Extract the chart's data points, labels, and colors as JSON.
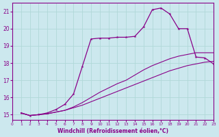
{
  "xlabel": "Windchill (Refroidissement éolien,°C)",
  "bg_color": "#cce8ee",
  "grid_color": "#aaddcc",
  "line_color": "#880088",
  "xlim": [
    0,
    23
  ],
  "ylim": [
    14.7,
    21.5
  ],
  "xticks": [
    0,
    1,
    2,
    3,
    4,
    5,
    6,
    7,
    8,
    9,
    10,
    11,
    12,
    13,
    14,
    15,
    16,
    17,
    18,
    19,
    20,
    21,
    22,
    23
  ],
  "yticks": [
    15,
    16,
    17,
    18,
    19,
    20,
    21
  ],
  "line1_x": [
    1,
    2,
    3,
    4,
    5,
    6,
    7,
    8,
    9,
    10,
    11,
    12,
    13,
    14,
    15,
    16,
    17,
    18,
    19,
    20,
    21,
    22,
    23
  ],
  "line1_y": [
    15.1,
    14.95,
    15.0,
    15.05,
    15.15,
    15.25,
    15.4,
    15.55,
    15.75,
    15.95,
    16.15,
    16.35,
    16.55,
    16.75,
    16.95,
    17.15,
    17.35,
    17.55,
    17.7,
    17.85,
    17.95,
    18.05,
    18.1
  ],
  "line2_x": [
    1,
    2,
    3,
    4,
    5,
    6,
    7,
    8,
    9,
    10,
    11,
    12,
    13,
    14,
    15,
    16,
    17,
    18,
    19,
    20,
    21,
    22,
    23
  ],
  "line2_y": [
    15.1,
    14.95,
    15.0,
    15.05,
    15.15,
    15.25,
    15.45,
    15.7,
    16.0,
    16.3,
    16.55,
    16.8,
    17.0,
    17.3,
    17.6,
    17.85,
    18.05,
    18.25,
    18.4,
    18.5,
    18.6,
    18.6,
    18.6
  ],
  "line3_x": [
    1,
    2,
    3,
    4,
    5,
    6,
    7,
    8,
    9,
    10,
    11,
    12,
    13,
    14,
    15,
    16,
    17,
    18,
    19,
    20,
    21,
    22,
    23
  ],
  "line3_y": [
    15.1,
    14.95,
    15.0,
    15.1,
    15.3,
    15.6,
    16.2,
    17.8,
    19.4,
    19.45,
    19.45,
    19.5,
    19.5,
    19.55,
    20.1,
    21.1,
    21.2,
    20.85,
    20.0,
    20.0,
    18.35,
    18.3,
    17.95
  ],
  "line3_markers_x": [
    1,
    2,
    3,
    4,
    5,
    6,
    7,
    8,
    9,
    10,
    11,
    12,
    13,
    14,
    15,
    16,
    17,
    18,
    19,
    20,
    21,
    22,
    23
  ],
  "line3_markers_y": [
    15.1,
    14.95,
    15.0,
    15.1,
    15.3,
    15.6,
    16.2,
    17.8,
    19.4,
    19.45,
    19.45,
    19.5,
    19.5,
    19.55,
    20.1,
    21.1,
    21.2,
    20.85,
    20.0,
    20.0,
    18.35,
    18.3,
    17.95
  ]
}
